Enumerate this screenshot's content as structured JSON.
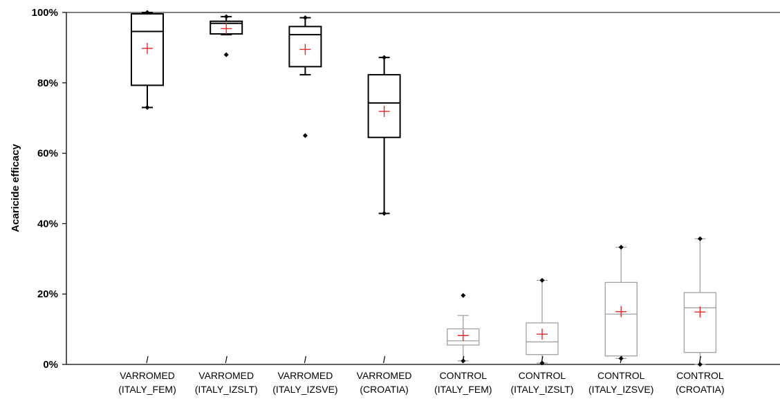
{
  "chart_data": {
    "type": "boxplot",
    "ylabel": "Acaricide efficacy",
    "ylim": [
      0,
      100
    ],
    "yticks": [
      0,
      20,
      40,
      60,
      80,
      100
    ],
    "ytick_labels": [
      "0%",
      "20%",
      "40%",
      "60%",
      "80%",
      "100%"
    ],
    "grid": false,
    "mean_marker": "+",
    "colors": {
      "treated": "#000000",
      "control": "#a0a0a0",
      "mean": "#e8262a",
      "points": "#000000"
    },
    "categories": [
      {
        "line1": "VARROMED",
        "line2": "(ITALY_FEM)",
        "group": "treated",
        "min": 73,
        "q1": 79.3,
        "median": 94.6,
        "q3": 99.6,
        "max": 100,
        "mean": 89.8,
        "outliers": [],
        "endpoints": [
          73,
          100
        ]
      },
      {
        "line1": "VARROMED",
        "line2": "(ITALY_IZSLT)",
        "group": "treated",
        "min": 93.7,
        "q1": 93.9,
        "median": 96.9,
        "q3": 97.5,
        "max": 98.8,
        "mean": 95.4,
        "outliers": [
          88
        ],
        "endpoints": [
          98.8
        ]
      },
      {
        "line1": "VARROMED",
        "line2": "(ITALY_IZSVE)",
        "group": "treated",
        "min": 82.3,
        "q1": 84.6,
        "median": 93.7,
        "q3": 96,
        "max": 98.5,
        "mean": 89.5,
        "outliers": [
          65
        ],
        "endpoints": [
          98.5
        ]
      },
      {
        "line1": "VARROMED",
        "line2": "(CROATIA)",
        "group": "treated",
        "min": 42.9,
        "q1": 64.5,
        "median": 74.3,
        "q3": 82.3,
        "max": 87.2,
        "mean": 71.9,
        "outliers": [],
        "endpoints": [
          42.9,
          87.2
        ]
      },
      {
        "line1": "CONTROL",
        "line2": "(ITALY_FEM)",
        "group": "control",
        "min": 1,
        "q1": 5.5,
        "median": 6.7,
        "q3": 10.1,
        "max": 13.9,
        "mean": 8.2,
        "outliers": [
          19.6
        ],
        "endpoints": [
          1
        ]
      },
      {
        "line1": "CONTROL",
        "line2": "(ITALY_IZSLT)",
        "group": "control",
        "min": 0.4,
        "q1": 2.8,
        "median": 6.4,
        "q3": 11.8,
        "max": 23.9,
        "mean": 8.6,
        "outliers": [],
        "endpoints": [
          0.4,
          23.9
        ]
      },
      {
        "line1": "CONTROL",
        "line2": "(ITALY_IZSVE)",
        "group": "control",
        "min": 1.7,
        "q1": 2.4,
        "median": 14.3,
        "q3": 23.3,
        "max": 33.3,
        "mean": 15,
        "outliers": [],
        "endpoints": [
          1.7,
          33.3
        ]
      },
      {
        "line1": "CONTROL",
        "line2": "(CROATIA)",
        "group": "control",
        "min": 0,
        "q1": 3.4,
        "median": 16.1,
        "q3": 20.4,
        "max": 35.7,
        "mean": 14.9,
        "outliers": [],
        "endpoints": [
          0,
          35.7
        ]
      }
    ]
  }
}
